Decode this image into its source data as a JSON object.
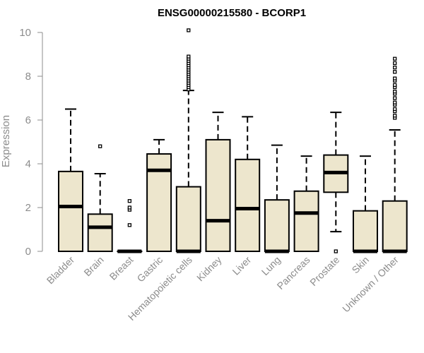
{
  "chart_data": {
    "type": "boxplot",
    "title": "ENSG00000215580 - BCORP1",
    "ylabel": "Expression",
    "xlabel": "",
    "ylim": [
      0,
      10
    ],
    "yticks": [
      "0",
      "2",
      "4",
      "6",
      "8",
      "10"
    ],
    "box_fill": "#ede6cd",
    "box_stroke": "#000000",
    "axis_color": "#8c8c8c",
    "categories": [
      "Bladder",
      "Brain",
      "Breast",
      "Gastric",
      "Hematopoietic cells",
      "Kidney",
      "Liver",
      "Lung",
      "Pancreas",
      "Prostate",
      "Skin",
      "Unknown / Other"
    ],
    "boxes": [
      {
        "category": "Bladder",
        "q1": 0,
        "median": 2.05,
        "q3": 3.65,
        "whisker_low": 0,
        "whisker_high": 6.5,
        "outliers": []
      },
      {
        "category": "Brain",
        "q1": 0,
        "median": 1.1,
        "q3": 1.7,
        "whisker_low": 0,
        "whisker_high": 3.55,
        "outliers": [
          4.8
        ]
      },
      {
        "category": "Breast",
        "q1": 0,
        "median": 0,
        "q3": 0,
        "whisker_low": 0,
        "whisker_high": 0,
        "outliers": [
          1.2,
          1.9,
          2.0,
          2.3
        ]
      },
      {
        "category": "Gastric",
        "q1": 0,
        "median": 3.7,
        "q3": 4.45,
        "whisker_low": 0,
        "whisker_high": 5.1,
        "outliers": []
      },
      {
        "category": "Hematopoietic cells",
        "q1": 0,
        "median": 0,
        "q3": 2.95,
        "whisker_low": 0,
        "whisker_high": 7.35,
        "outliers": [
          7.4,
          7.5,
          7.6,
          7.7,
          7.8,
          7.9,
          8.0,
          8.1,
          8.2,
          8.3,
          8.4,
          8.5,
          8.6,
          8.7,
          8.8,
          8.9,
          10.1
        ]
      },
      {
        "category": "Kidney",
        "q1": 0,
        "median": 1.4,
        "q3": 5.1,
        "whisker_low": 0,
        "whisker_high": 6.35,
        "outliers": []
      },
      {
        "category": "Liver",
        "q1": 0,
        "median": 1.95,
        "q3": 4.2,
        "whisker_low": 0,
        "whisker_high": 6.15,
        "outliers": []
      },
      {
        "category": "Lung",
        "q1": 0,
        "median": 0,
        "q3": 2.35,
        "whisker_low": 0,
        "whisker_high": 4.85,
        "outliers": []
      },
      {
        "category": "Pancreas",
        "q1": 0,
        "median": 1.75,
        "q3": 2.75,
        "whisker_low": 0,
        "whisker_high": 4.35,
        "outliers": []
      },
      {
        "category": "Prostate",
        "q1": 2.7,
        "median": 3.6,
        "q3": 4.4,
        "whisker_low": 0.9,
        "whisker_high": 6.35,
        "outliers": [
          0
        ]
      },
      {
        "category": "Skin",
        "q1": 0,
        "median": 0,
        "q3": 1.85,
        "whisker_low": 0,
        "whisker_high": 4.35,
        "outliers": []
      },
      {
        "category": "Unknown / Other",
        "q1": 0,
        "median": 0,
        "q3": 2.3,
        "whisker_low": 0,
        "whisker_high": 5.55,
        "outliers": [
          6.1,
          6.2,
          6.4,
          6.5,
          6.7,
          6.8,
          7.0,
          7.2,
          7.3,
          7.5,
          7.6,
          7.8,
          7.9,
          8.2,
          8.4,
          8.6,
          8.8
        ]
      }
    ]
  }
}
